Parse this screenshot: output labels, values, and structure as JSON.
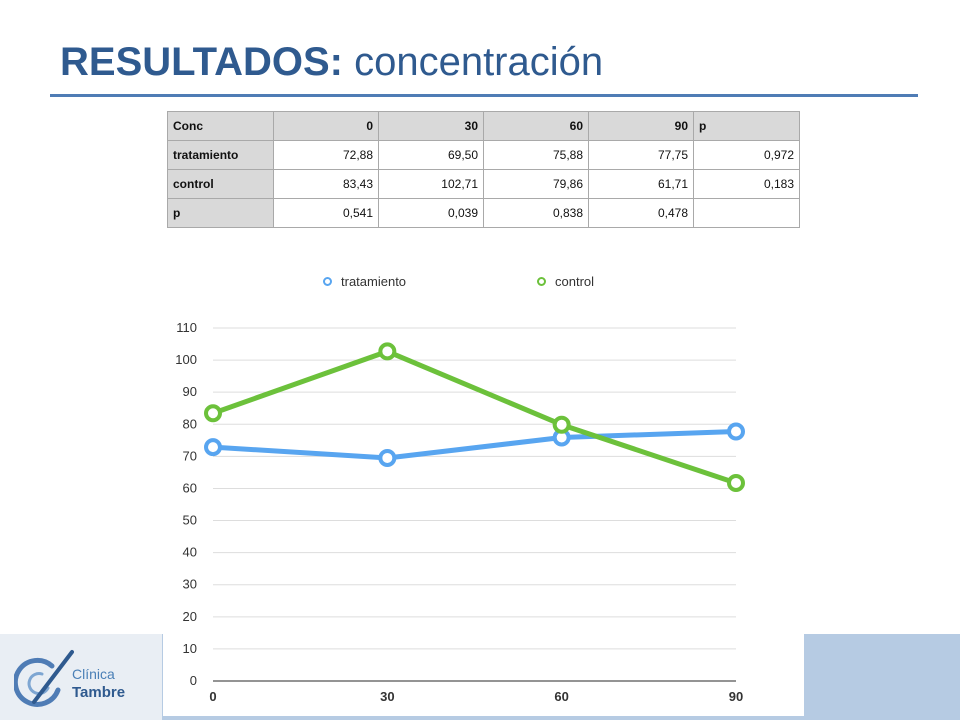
{
  "slide": {
    "title_bold": "RESULTADOS:",
    "title_rest": "concentración",
    "logo_line1": "Clínica",
    "logo_line2": "Tambre"
  },
  "table": {
    "header": [
      "Conc",
      "0",
      "30",
      "60",
      "90",
      "p"
    ],
    "rows": [
      [
        "tratamiento",
        "72,88",
        "69,50",
        "75,88",
        "77,75",
        "0,972"
      ],
      [
        "control",
        "83,43",
        "102,71",
        "79,86",
        "61,71",
        "0,183"
      ],
      [
        "p",
        "0,541",
        "0,039",
        "0,838",
        "0,478",
        ""
      ]
    ]
  },
  "chart_data": {
    "type": "line",
    "title": "",
    "xlabel": "",
    "ylabel": "",
    "x": [
      0,
      30,
      60,
      90
    ],
    "xticks": [
      "0",
      "30",
      "60",
      "90"
    ],
    "yticks": [
      "0",
      "10",
      "20",
      "30",
      "40",
      "50",
      "60",
      "70",
      "80",
      "90",
      "100",
      "110"
    ],
    "ylim": [
      0,
      110
    ],
    "grid": true,
    "legend_position": "top",
    "series": [
      {
        "name": "tratamiento",
        "color": "#58a5f0",
        "values": [
          72.88,
          69.5,
          75.88,
          77.75
        ]
      },
      {
        "name": "control",
        "color": "#6cc13b",
        "values": [
          83.43,
          102.71,
          79.86,
          61.71
        ]
      }
    ]
  }
}
